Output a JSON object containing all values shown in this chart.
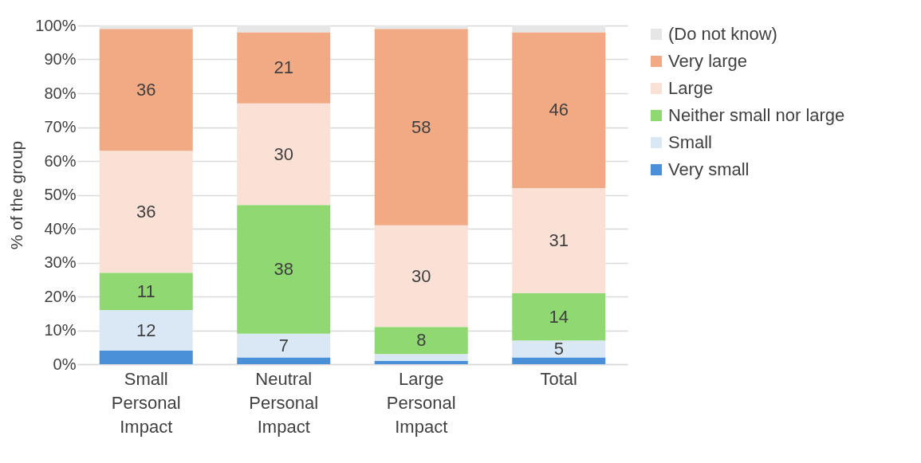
{
  "chart_data": {
    "type": "bar",
    "stacked": true,
    "ylabel": "% of the group",
    "categories": [
      "Small Personal Impact",
      "Neutral Personal Impact",
      "Large Personal Impact",
      "Total"
    ],
    "ylim": [
      0,
      100
    ],
    "yticks": [
      {
        "value": 0,
        "label": "0%"
      },
      {
        "value": 10,
        "label": "10%"
      },
      {
        "value": 20,
        "label": "20%"
      },
      {
        "value": 30,
        "label": "30%"
      },
      {
        "value": 40,
        "label": "40%"
      },
      {
        "value": 50,
        "label": "50%"
      },
      {
        "value": 60,
        "label": "60%"
      },
      {
        "value": 70,
        "label": "70%"
      },
      {
        "value": 80,
        "label": "80%"
      },
      {
        "value": 90,
        "label": "90%"
      },
      {
        "value": 100,
        "label": "100%"
      }
    ],
    "grid": "y",
    "legend": "right",
    "series": [
      {
        "name": "Very small",
        "color": "#4a90d9",
        "values": [
          4,
          2,
          1,
          2
        ],
        "value_labels": [
          null,
          null,
          null,
          null
        ]
      },
      {
        "name": "Small",
        "color": "#dae8f5",
        "values": [
          12,
          7,
          2,
          5
        ],
        "value_labels": [
          "12",
          "7",
          null,
          "5"
        ]
      },
      {
        "name": "Neither small nor large",
        "color": "#8fd872",
        "values": [
          11,
          38,
          8,
          14
        ],
        "value_labels": [
          "11",
          "38",
          "8",
          "14"
        ]
      },
      {
        "name": "Large",
        "color": "#fbe1d5",
        "values": [
          36,
          30,
          30,
          31
        ],
        "value_labels": [
          "36",
          "30",
          "30",
          "31"
        ]
      },
      {
        "name": "Very large",
        "color": "#f2aa84",
        "values": [
          36,
          21,
          58,
          46
        ],
        "value_labels": [
          "36",
          "21",
          "58",
          "46"
        ]
      },
      {
        "name": "(Do not know)",
        "color": "#e6e6e6",
        "values": [
          1,
          2,
          1,
          2
        ],
        "value_labels": [
          null,
          null,
          null,
          null
        ]
      }
    ]
  }
}
